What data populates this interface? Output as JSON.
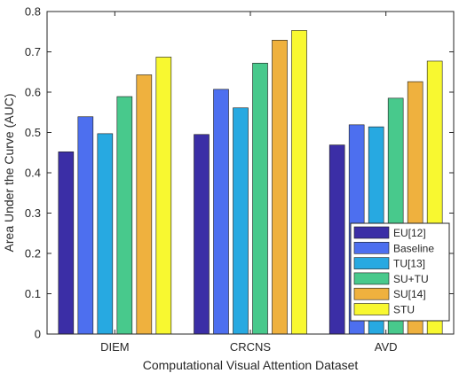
{
  "chart_data": {
    "type": "bar",
    "title": "",
    "xlabel": "Computational Visual Attention Dataset",
    "ylabel": "Area Under the Curve (AUC)",
    "ylim": [
      0,
      0.8
    ],
    "yticks": [
      "0",
      "0.1",
      "0.2",
      "0.3",
      "0.4",
      "0.5",
      "0.6",
      "0.7",
      "0.8"
    ],
    "categories": [
      "DIEM",
      "CRCNS",
      "AVD"
    ],
    "grid": false,
    "legend_position": "bottom-right",
    "series": [
      {
        "name": "EU[12]",
        "color": "#3b2ea6",
        "values": [
          0.452,
          0.495,
          0.469
        ]
      },
      {
        "name": "Baseline",
        "color": "#4d6fef",
        "values": [
          0.539,
          0.607,
          0.519
        ]
      },
      {
        "name": "TU[13]",
        "color": "#27a9e1",
        "values": [
          0.497,
          0.561,
          0.514
        ]
      },
      {
        "name": "SU+TU",
        "color": "#48c98c",
        "values": [
          0.589,
          0.672,
          0.585
        ]
      },
      {
        "name": "SU[14]",
        "color": "#efb13e",
        "values": [
          0.643,
          0.729,
          0.626
        ]
      },
      {
        "name": "STU",
        "color": "#f8f830",
        "values": [
          0.687,
          0.753,
          0.677
        ]
      }
    ]
  }
}
